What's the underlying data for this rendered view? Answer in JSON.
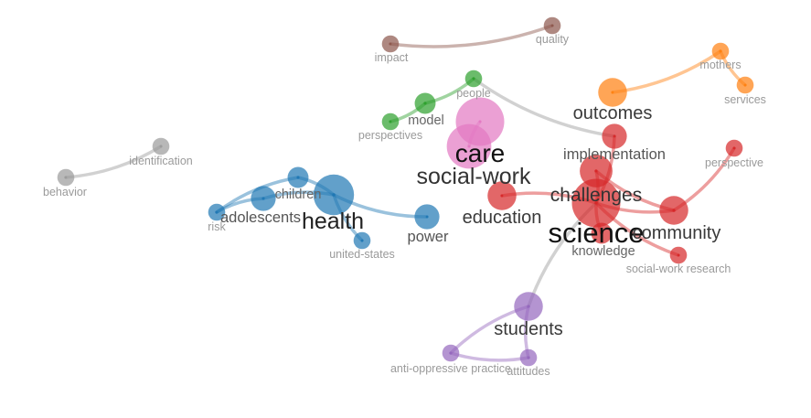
{
  "colors": {
    "red": "#d62728",
    "blue": "#1f77b4",
    "green": "#2ca02c",
    "pink": "#e377c2",
    "orange": "#ff7f0e",
    "brown": "#8c564b",
    "purple": "#9467bd",
    "gray": "#9a9a9a"
  },
  "nodes": [
    {
      "id": "science",
      "label": "science",
      "color": "red",
      "weight": 10
    },
    {
      "id": "challenges",
      "label": "challenges",
      "color": "red",
      "weight": 6
    },
    {
      "id": "education",
      "label": "education",
      "color": "red",
      "weight": 5
    },
    {
      "id": "community",
      "label": "community",
      "color": "red",
      "weight": 5
    },
    {
      "id": "implementation",
      "label": "implementation",
      "color": "red",
      "weight": 4
    },
    {
      "id": "knowledge",
      "label": "knowledge",
      "color": "red",
      "weight": 3
    },
    {
      "id": "perspective",
      "label": "perspective",
      "color": "red",
      "weight": 2
    },
    {
      "id": "social-work-research",
      "label": "social-work research",
      "color": "red",
      "weight": 2
    },
    {
      "id": "health",
      "label": "health",
      "color": "blue",
      "weight": 8
    },
    {
      "id": "power",
      "label": "power",
      "color": "blue",
      "weight": 4
    },
    {
      "id": "children",
      "label": "children",
      "color": "blue",
      "weight": 3
    },
    {
      "id": "adolescents",
      "label": "adolescents",
      "color": "blue",
      "weight": 4
    },
    {
      "id": "risk",
      "label": "risk",
      "color": "blue",
      "weight": 2
    },
    {
      "id": "united-states",
      "label": "united-states",
      "color": "blue",
      "weight": 2
    },
    {
      "id": "care",
      "label": "care",
      "color": "pink",
      "weight": 10
    },
    {
      "id": "social-work",
      "label": "social-work",
      "color": "pink",
      "weight": 9
    },
    {
      "id": "model",
      "label": "model",
      "color": "green",
      "weight": 3
    },
    {
      "id": "people",
      "label": "people",
      "color": "green",
      "weight": 2
    },
    {
      "id": "perspectives",
      "label": "perspectives",
      "color": "green",
      "weight": 2
    },
    {
      "id": "outcomes",
      "label": "outcomes",
      "color": "orange",
      "weight": 5
    },
    {
      "id": "mothers",
      "label": "mothers",
      "color": "orange",
      "weight": 2
    },
    {
      "id": "services",
      "label": "services",
      "color": "orange",
      "weight": 2
    },
    {
      "id": "impact",
      "label": "impact",
      "color": "brown",
      "weight": 2
    },
    {
      "id": "quality",
      "label": "quality",
      "color": "brown",
      "weight": 2
    },
    {
      "id": "students",
      "label": "students",
      "color": "purple",
      "weight": 5
    },
    {
      "id": "anti-oppressive-practice",
      "label": "anti-oppressive practice",
      "color": "purple",
      "weight": 2
    },
    {
      "id": "attitudes",
      "label": "attitudes",
      "color": "purple",
      "weight": 2
    },
    {
      "id": "behavior",
      "label": "behavior",
      "color": "gray",
      "weight": 2
    },
    {
      "id": "identification",
      "label": "identification",
      "color": "gray",
      "weight": 2
    }
  ],
  "links": [
    {
      "source": "science",
      "target": "challenges",
      "color": "red"
    },
    {
      "source": "science",
      "target": "education",
      "color": "red"
    },
    {
      "source": "science",
      "target": "community",
      "color": "red"
    },
    {
      "source": "science",
      "target": "implementation",
      "color": "red"
    },
    {
      "source": "science",
      "target": "knowledge",
      "color": "red"
    },
    {
      "source": "science",
      "target": "social-work-research",
      "color": "red"
    },
    {
      "source": "community",
      "target": "perspective",
      "color": "red"
    },
    {
      "source": "challenges",
      "target": "community",
      "color": "red"
    },
    {
      "source": "science",
      "target": "students",
      "color": "gray"
    },
    {
      "source": "people",
      "target": "implementation",
      "color": "gray"
    },
    {
      "source": "health",
      "target": "power",
      "color": "blue"
    },
    {
      "source": "health",
      "target": "children",
      "color": "blue"
    },
    {
      "source": "health",
      "target": "adolescents",
      "color": "blue"
    },
    {
      "source": "health",
      "target": "united-states",
      "color": "blue"
    },
    {
      "source": "adolescents",
      "target": "risk",
      "color": "blue"
    },
    {
      "source": "children",
      "target": "risk",
      "color": "blue"
    },
    {
      "source": "care",
      "target": "social-work",
      "color": "pink"
    },
    {
      "source": "perspectives",
      "target": "model",
      "color": "green"
    },
    {
      "source": "model",
      "target": "people",
      "color": "green"
    },
    {
      "source": "outcomes",
      "target": "mothers",
      "color": "orange"
    },
    {
      "source": "mothers",
      "target": "services",
      "color": "orange"
    },
    {
      "source": "impact",
      "target": "quality",
      "color": "brown"
    },
    {
      "source": "students",
      "target": "anti-oppressive-practice",
      "color": "purple"
    },
    {
      "source": "students",
      "target": "attitudes",
      "color": "purple"
    },
    {
      "source": "anti-oppressive-practice",
      "target": "attitudes",
      "color": "purple"
    },
    {
      "source": "behavior",
      "target": "identification",
      "color": "gray"
    }
  ]
}
